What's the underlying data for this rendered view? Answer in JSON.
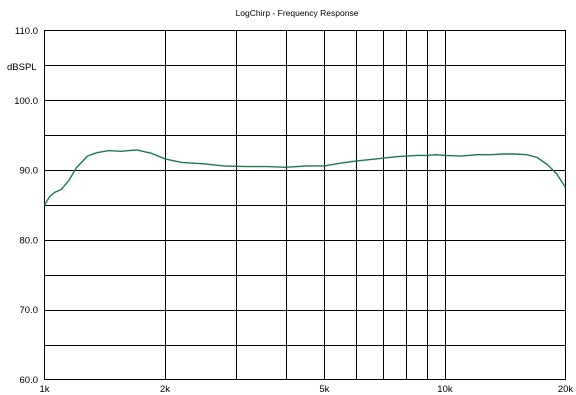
{
  "chart_data": {
    "type": "line",
    "title": "LogChirp - Frequency Response",
    "ylabel": "dBSPL",
    "xlabel": "",
    "x_scale": "log",
    "xlim": [
      1000,
      20000
    ],
    "ylim": [
      60,
      110
    ],
    "grid": true,
    "x_ticks": [
      1000,
      2000,
      5000,
      10000,
      20000
    ],
    "x_tick_labels": [
      "1k",
      "2k",
      "5k",
      "10k",
      "20k"
    ],
    "x_gridlines": [
      1000,
      2000,
      3000,
      4000,
      5000,
      6000,
      7000,
      8000,
      9000,
      10000,
      20000
    ],
    "y_ticks": [
      60,
      70,
      80,
      90,
      100,
      110
    ],
    "y_tick_labels": [
      "60.0",
      "70.0",
      "80.0",
      "90.0",
      "100.0",
      "110.0"
    ],
    "y_gridlines": [
      60,
      65,
      70,
      75,
      80,
      85,
      90,
      95,
      100,
      105,
      110
    ],
    "line_color": "#1e7a4c",
    "series": [
      {
        "x": [
          1000,
          1030,
          1060,
          1100,
          1150,
          1200,
          1280,
          1350,
          1450,
          1550,
          1700,
          1850,
          2000,
          2200,
          2500,
          2800,
          3200,
          3600,
          4000,
          4500,
          5000,
          5500,
          6000,
          6500,
          7000,
          7500,
          8000,
          8500,
          9000,
          9500,
          10000,
          11000,
          12000,
          13000,
          14000,
          15000,
          16000,
          17000,
          18000,
          19000,
          20000
        ],
        "y": [
          85.0,
          86.2,
          86.8,
          87.2,
          88.5,
          90.3,
          92.0,
          92.5,
          92.8,
          92.7,
          92.9,
          92.4,
          91.6,
          91.1,
          90.9,
          90.6,
          90.5,
          90.5,
          90.4,
          90.6,
          90.6,
          91.0,
          91.3,
          91.5,
          91.7,
          91.9,
          92.0,
          92.1,
          92.1,
          92.2,
          92.1,
          92.0,
          92.2,
          92.2,
          92.3,
          92.3,
          92.2,
          91.8,
          90.8,
          89.5,
          87.5
        ]
      }
    ]
  }
}
